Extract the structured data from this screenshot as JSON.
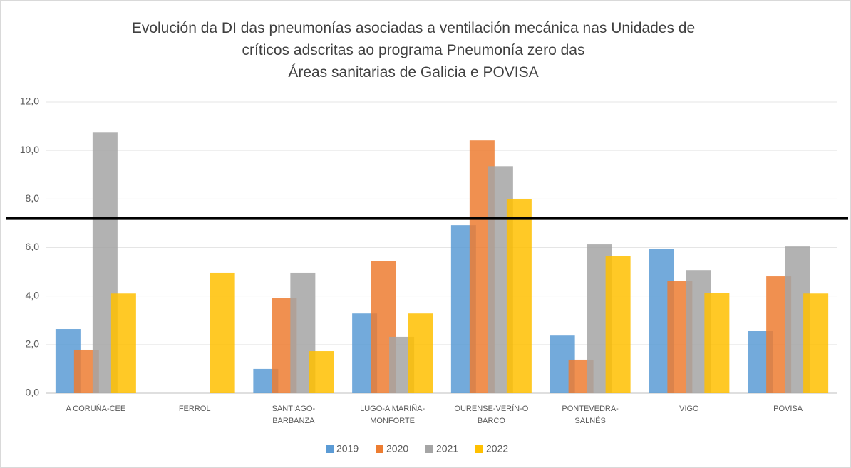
{
  "chart_data": {
    "type": "bar",
    "title": "Evolución da DI das pneumonías asociadas a ventilación mecánica nas Unidades de\ncríticos adscritas ao programa Pneumonía zero das\nÁreas sanitarias de Galicia e POVISA",
    "categories": [
      "A CORUÑA-CEE",
      "FERROL",
      "SANTIAGO-\nBARBANZA",
      "LUGO-A MARIÑA-\nMONFORTE",
      "OURENSE-VERÍN-O\nBARCO",
      "PONTEVEDRA-\nSALNÉS",
      "VIGO",
      "POVISA"
    ],
    "series": [
      {
        "name": "2019",
        "color": "#5b9bd5",
        "values": [
          2.64,
          null,
          1.0,
          3.28,
          6.92,
          2.4,
          5.95,
          2.58
        ]
      },
      {
        "name": "2020",
        "color": "#ed7d31",
        "values": [
          1.79,
          null,
          3.93,
          5.43,
          10.41,
          1.38,
          4.63,
          4.81
        ]
      },
      {
        "name": "2021",
        "color": "#a5a5a5",
        "values": [
          10.73,
          null,
          4.96,
          2.32,
          9.35,
          6.13,
          5.07,
          6.04
        ]
      },
      {
        "name": "2022",
        "color": "#ffc000",
        "values": [
          4.1,
          4.96,
          1.73,
          3.28,
          8.0,
          5.66,
          4.13,
          4.1
        ]
      }
    ],
    "reference_line": 7.2,
    "ylim": [
      0,
      12
    ],
    "yticks": [
      {
        "value": 0,
        "label": "0,0"
      },
      {
        "value": 2,
        "label": "2,0"
      },
      {
        "value": 4,
        "label": "4,0"
      },
      {
        "value": 6,
        "label": "6,0"
      },
      {
        "value": 8,
        "label": "8,0"
      },
      {
        "value": 10,
        "label": "10,0"
      },
      {
        "value": 12,
        "label": "12,0"
      }
    ],
    "grid": true,
    "legend": "bottom"
  }
}
